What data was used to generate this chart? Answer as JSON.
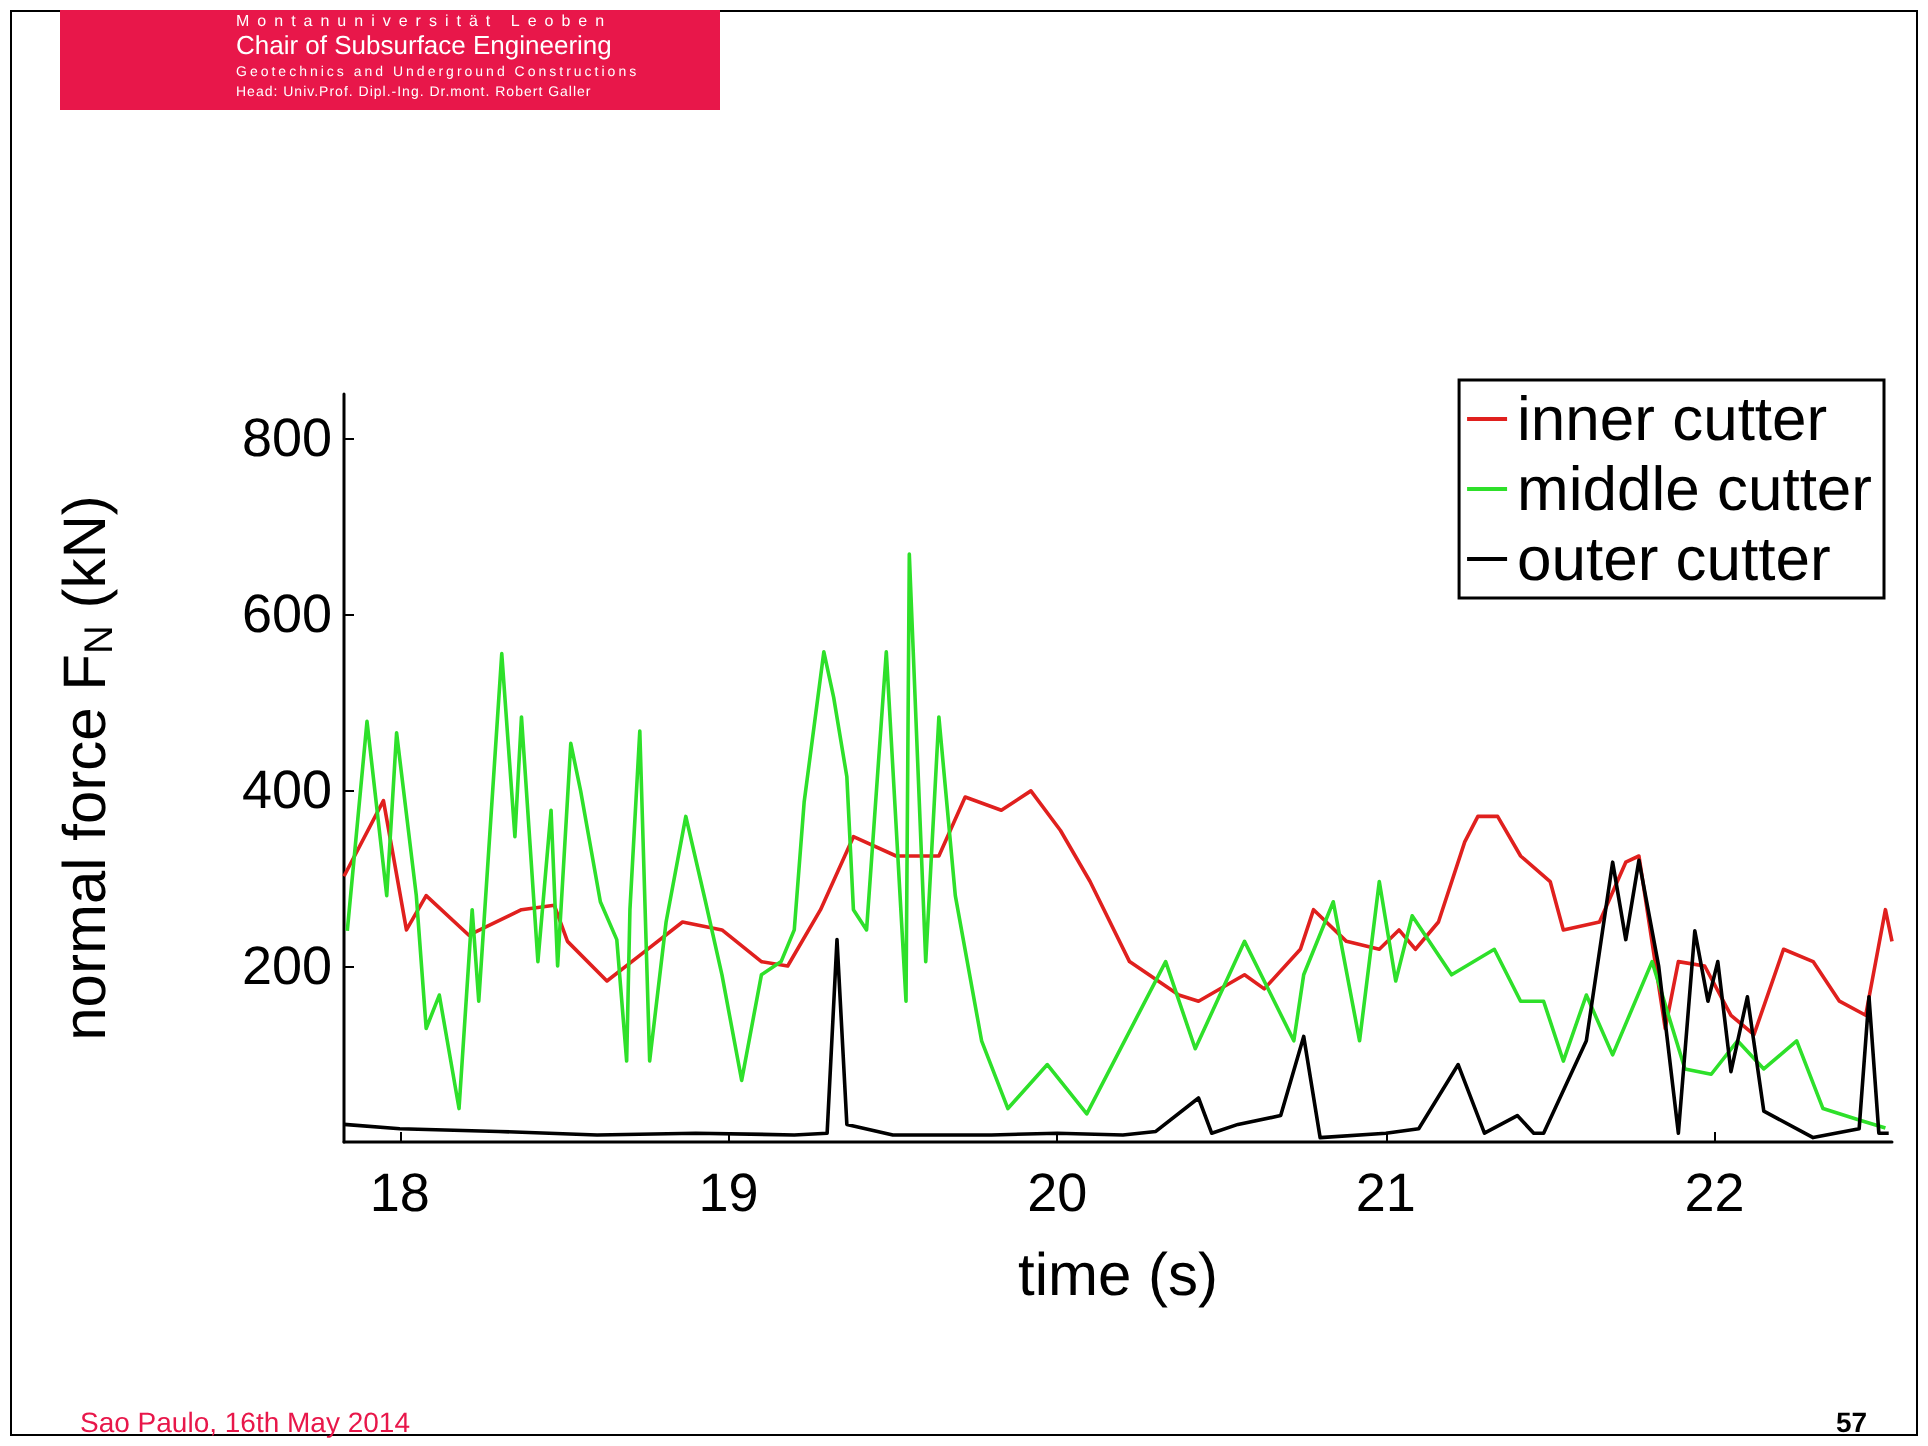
{
  "chart_data": {
    "type": "line",
    "xlabel": "time (s)",
    "ylabel": "normal force F$_{N}$ (kN)",
    "xlim": [
      17.83,
      22.54
    ],
    "xticks": [
      18,
      19,
      20,
      21,
      22
    ],
    "ylim": [
      0,
      850
    ],
    "yticks": [
      200,
      400,
      600,
      800
    ],
    "grid": false,
    "legend": "top right",
    "marker": "none",
    "line_style": "solid",
    "annotations": [
      "Montanuniversität Leoben",
      "Chair of Subsurface Engineering",
      "Geotechnics and Underground Constructions",
      "Head: Univ.Prof. Dipl.-Ing. Dr.mont. Robert Galler",
      "Sao Paulo, 16th May 2014",
      "57"
    ],
    "series": [
      {
        "name": "inner cutter",
        "color": "#e0201e",
        "x": [
          17.83,
          17.95,
          18.02,
          18.08,
          18.21,
          18.37,
          18.47,
          18.51,
          18.63,
          18.73,
          18.86,
          18.98,
          19.1,
          19.18,
          19.28,
          19.38,
          19.51,
          19.64,
          19.72,
          19.83,
          19.92,
          20.01,
          20.1,
          20.22,
          20.37,
          20.43,
          20.57,
          20.63,
          20.74,
          20.78,
          20.88,
          20.98,
          21.04,
          21.09,
          21.16,
          21.24,
          21.28,
          21.34,
          21.41,
          21.5,
          21.54,
          21.65,
          21.73,
          21.77,
          21.85,
          21.89,
          21.97,
          22.05,
          22.12,
          22.21,
          22.3,
          22.38,
          22.46,
          22.52,
          22.54
        ],
        "values": [
          302,
          388,
          241,
          280,
          235,
          264,
          269,
          228,
          183,
          212,
          250,
          241,
          205,
          200,
          264,
          347,
          325,
          325,
          392,
          377,
          399,
          354,
          296,
          205,
          167,
          160,
          190,
          174,
          219,
          264,
          228,
          219,
          241,
          219,
          250,
          341,
          370,
          370,
          325,
          296,
          241,
          250,
          318,
          325,
          129,
          205,
          200,
          144,
          122,
          219,
          205,
          160,
          144,
          264,
          228
        ]
      },
      {
        "name": "middle cutter",
        "color": "#2ee02a",
        "x": [
          17.84,
          17.9,
          17.96,
          17.99,
          18.05,
          18.08,
          18.12,
          18.18,
          18.22,
          18.24,
          18.31,
          18.35,
          18.37,
          18.42,
          18.46,
          18.48,
          18.52,
          18.55,
          18.61,
          18.66,
          18.69,
          18.7,
          18.73,
          18.76,
          18.81,
          18.87,
          18.93,
          18.98,
          19.04,
          19.1,
          19.16,
          19.2,
          19.23,
          19.29,
          19.32,
          19.36,
          19.38,
          19.42,
          19.48,
          19.54,
          19.55,
          19.6,
          19.64,
          19.69,
          19.77,
          19.85,
          19.97,
          20.09,
          20.33,
          20.42,
          20.57,
          20.72,
          20.75,
          20.84,
          20.92,
          20.98,
          21.03,
          21.08,
          21.2,
          21.33,
          21.41,
          21.48,
          21.54,
          21.61,
          21.69,
          21.81,
          21.91,
          21.99,
          22.07,
          22.15,
          22.25,
          22.33,
          22.44,
          22.52
        ],
        "values": [
          240,
          478,
          280,
          465,
          280,
          129,
          167,
          38,
          264,
          160,
          555,
          347,
          483,
          205,
          377,
          200,
          453,
          399,
          273,
          230,
          92,
          264,
          467,
          92,
          250,
          370,
          273,
          190,
          70,
          190,
          205,
          241,
          386,
          557,
          505,
          415,
          264,
          241,
          557,
          160,
          668,
          205,
          483,
          280,
          115,
          38,
          88,
          32,
          205,
          106,
          228,
          115,
          190,
          273,
          115,
          296,
          183,
          257,
          190,
          219,
          160,
          160,
          92,
          167,
          99,
          205,
          83,
          77,
          115,
          83,
          115,
          38,
          25,
          16
        ]
      },
      {
        "name": "outer cutter",
        "color": "#000000",
        "x": [
          17.83,
          18.0,
          18.3,
          18.6,
          18.9,
          19.2,
          19.3,
          19.33,
          19.36,
          19.5,
          19.8,
          20.0,
          20.2,
          20.3,
          20.43,
          20.47,
          20.55,
          20.68,
          20.75,
          20.8,
          21.0,
          21.1,
          21.22,
          21.3,
          21.4,
          21.45,
          21.48,
          21.61,
          21.69,
          21.73,
          21.77,
          21.83,
          21.89,
          21.94,
          21.98,
          22.01,
          22.05,
          22.1,
          22.15,
          22.3,
          22.44,
          22.47,
          22.5,
          22.53
        ],
        "values": [
          20,
          15,
          12,
          8,
          10,
          8,
          10,
          230,
          20,
          8,
          8,
          10,
          8,
          12,
          50,
          10,
          20,
          30,
          120,
          5,
          10,
          15,
          88,
          10,
          30,
          10,
          10,
          115,
          318,
          230,
          320,
          200,
          10,
          240,
          160,
          205,
          80,
          165,
          35,
          5,
          15,
          165,
          10,
          10
        ]
      }
    ]
  }
}
